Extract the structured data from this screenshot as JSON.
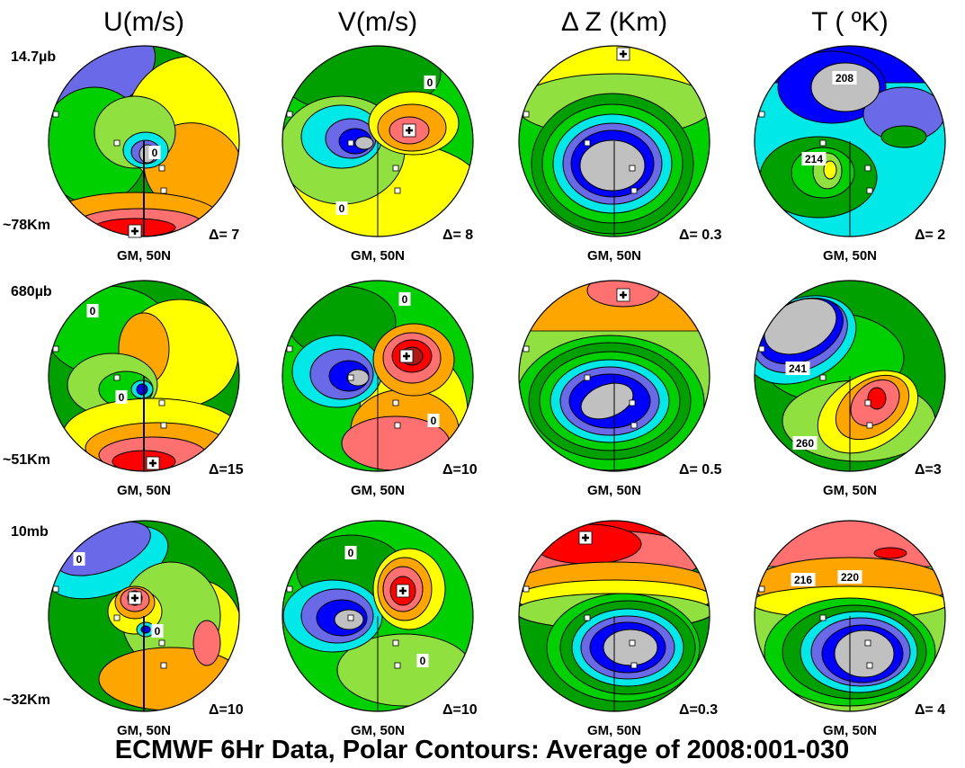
{
  "chart_data": {
    "type": "contour",
    "title": "ECMWF  6Hr Data,  Polar Contours: Average of 2008:001-030",
    "columns": [
      {
        "key": "U",
        "title": "U(m/s)"
      },
      {
        "key": "V",
        "title": "V(m/s)"
      },
      {
        "key": "DZ",
        "title": "Δ Z (Km)"
      },
      {
        "key": "T",
        "title": "T ( ºK)"
      }
    ],
    "rows": [
      {
        "pressure_label": "14.7µb",
        "altitude_label": "~78Km"
      },
      {
        "pressure_label": "680µb",
        "altitude_label": "~51Km"
      },
      {
        "pressure_label": "10mb",
        "altitude_label": "~32Km"
      }
    ],
    "projection_label": "GM, 50N",
    "contour_interval": [
      [
        "Δ= 7",
        "Δ= 8",
        "Δ= 0.3",
        "Δ= 2"
      ],
      [
        "Δ=15",
        "Δ=10",
        "Δ= 0.5",
        "Δ=3"
      ],
      [
        "Δ=10",
        "Δ=10",
        "Δ=0.3",
        "Δ= 4"
      ]
    ],
    "contour_labels": [
      [
        [
          "0"
        ],
        [
          "0",
          "0"
        ],
        [],
        [
          "208",
          "214"
        ]
      ],
      [
        [
          "0",
          "0"
        ],
        [
          "0",
          "0"
        ],
        [],
        [
          "241",
          "260"
        ]
      ],
      [
        [
          "0",
          "0"
        ],
        [
          "0",
          "0"
        ],
        [],
        [
          "216",
          "220"
        ]
      ]
    ],
    "colors": {
      "grey": "#c0c0c0",
      "dark_blue": "#0000ff",
      "blue": "#6a6ae8",
      "cyan": "#00e8e8",
      "dark_green": "#00a000",
      "green": "#00d000",
      "light_green": "#90e040",
      "yellow": "#ffff00",
      "orange": "#ffa500",
      "pink": "#ff7070",
      "red": "#ff0000",
      "dark_red": "#b01818"
    }
  }
}
